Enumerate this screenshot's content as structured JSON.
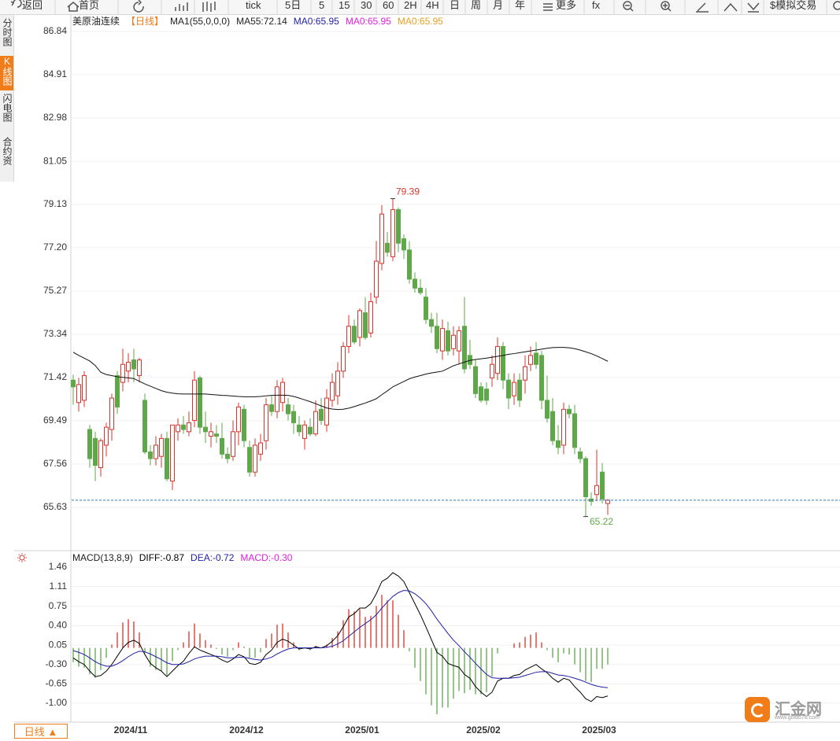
{
  "toolbar": [
    "返回",
    "首页",
    "tick",
    "5日",
    "5",
    "15",
    "30",
    "60",
    "2H",
    "4H",
    "日",
    "周",
    "月",
    "年",
    "更多",
    "fx",
    "$模拟交易"
  ],
  "sidebar": [
    "分时图",
    "K线图",
    "闪电图",
    "合约资料"
  ],
  "period_button": "日线 ▲",
  "logo": {
    "name": "汇金网",
    "url": "www.gold678.com"
  },
  "chart_data": [
    {
      "type": "candlestick",
      "title": "美原油连续",
      "period": "【日线】",
      "indicator": "MA1(55,0,0,0)",
      "legends": [
        {
          "text": "MA0:65.95",
          "color": "#1f1fa8"
        },
        {
          "text": "MA0:65.95",
          "color": "#e020e0"
        },
        {
          "text": "MA0:65.95",
          "color": "#e6a020"
        }
      ],
      "up_color": "#d9342b",
      "down_color": "#5fa84a",
      "last_price_color": "#2a7fc8",
      "grid": true,
      "ylim": [
        63.7,
        87.54
      ],
      "yticks": [
        86.84,
        84.91,
        82.98,
        81.05,
        79.13,
        {
          "value": 77.2,
          "label": "77.20"
        },
        75.27,
        73.34,
        71.42,
        69.49,
        67.56,
        65.63
      ],
      "categories": [
        null,
        null,
        null,
        null,
        null,
        null,
        null,
        null,
        null,
        null,
        "2024/11",
        null,
        null,
        null,
        null,
        null,
        null,
        null,
        null,
        null,
        null,
        null,
        null,
        null,
        null,
        null,
        null,
        null,
        null,
        null,
        null,
        "2024/12",
        null,
        null,
        null,
        null,
        null,
        null,
        null,
        null,
        null,
        null,
        null,
        null,
        null,
        null,
        null,
        null,
        null,
        null,
        null,
        null,
        "2025/01",
        null,
        null,
        null,
        null,
        null,
        null,
        null,
        null,
        null,
        null,
        null,
        null,
        null,
        null,
        null,
        null,
        null,
        null,
        null,
        null,
        null,
        "2025/02",
        null,
        null,
        null,
        null,
        null,
        null,
        null,
        null,
        null,
        null,
        null,
        null,
        null,
        null,
        null,
        null,
        null,
        null,
        null,
        null,
        "2025/03",
        null,
        null
      ],
      "open": [
        71.3,
        70.3,
        70.4,
        69.1,
        68.7,
        67.4,
        68.4,
        69.1,
        71.5,
        71.2,
        71.7,
        72.2,
        71.5,
        70.4,
        68.1,
        67.8,
        67.9,
        68.7,
        66.8,
        69.0,
        69.3,
        69.0,
        69.5,
        71.4,
        69.2,
        68.8,
        68.9,
        68.7,
        68.0,
        67.9,
        69.0,
        70.0,
        68.3,
        67.2,
        68.0,
        68.6,
        70.2,
        69.9,
        70.3,
        70.2,
        69.9,
        69.3,
        68.7,
        69.2,
        68.9,
        70.0,
        69.3,
        70.4,
        70.6,
        71.7,
        72.8,
        73.7,
        73.2,
        74.3,
        73.4,
        75.0,
        76.5,
        77.4,
        76.8,
        78.9,
        77.6,
        77.1,
        75.8,
        75.4,
        75.0,
        74.0,
        73.7,
        72.6,
        73.5,
        72.7,
        72.6,
        73.7,
        72.4,
        71.9,
        71.0,
        70.9,
        71.4,
        71.6,
        72.8,
        71.3,
        70.6,
        71.3,
        71.3,
        72.0,
        72.5,
        72.4,
        70.4,
        69.9,
        68.6,
        68.4,
        70.0,
        69.8,
        68.1,
        67.8,
        66.0,
        66.2,
        67.2,
        65.8
      ],
      "high": [
        71.55,
        71.4,
        71.7,
        69.3,
        69.0,
        68.7,
        69.4,
        70.7,
        71.7,
        72.7,
        72.5,
        72.7,
        72.3,
        70.7,
        68.4,
        68.8,
        68.9,
        69.0,
        69.3,
        69.6,
        69.7,
        69.9,
        71.7,
        71.5,
        69.9,
        69.4,
        69.3,
        69.4,
        68.3,
        69.5,
        70.3,
        70.2,
        68.6,
        68.7,
        68.9,
        70.5,
        70.6,
        71.3,
        71.4,
        70.5,
        70.2,
        69.7,
        69.5,
        69.6,
        70.4,
        70.5,
        70.9,
        71.6,
        72.1,
        73.0,
        74.2,
        74.0,
        74.5,
        75.0,
        75.2,
        77.5,
        79.1,
        77.9,
        79.39,
        79.0,
        77.8,
        77.5,
        76.1,
        75.8,
        75.4,
        74.3,
        74.3,
        74.0,
        73.9,
        73.7,
        73.7,
        75.0,
        73.1,
        72.2,
        71.2,
        71.2,
        72.4,
        73.2,
        73.0,
        71.6,
        71.6,
        71.6,
        72.4,
        72.8,
        73.0,
        72.6,
        71.5,
        70.5,
        69.3,
        70.3,
        70.2,
        70.2,
        68.3,
        67.9,
        66.3,
        68.2,
        67.6,
        66.0
      ],
      "low": [
        70.2,
        69.9,
        70.1,
        67.4,
        66.8,
        67.0,
        67.9,
        68.6,
        69.8,
        70.8,
        71.2,
        71.2,
        71.2,
        68.0,
        67.5,
        67.5,
        67.4,
        66.8,
        66.4,
        68.6,
        68.9,
        68.8,
        69.2,
        68.9,
        68.5,
        68.3,
        68.5,
        67.8,
        67.6,
        67.7,
        68.4,
        68.3,
        67.0,
        67.0,
        67.7,
        68.2,
        69.7,
        69.6,
        69.9,
        69.5,
        68.9,
        68.8,
        68.2,
        68.8,
        68.8,
        69.3,
        69.0,
        70.1,
        70.2,
        71.4,
        72.5,
        72.9,
        72.8,
        73.1,
        73.2,
        74.7,
        76.2,
        76.8,
        76.6,
        77.0,
        76.7,
        75.6,
        75.2,
        75.1,
        73.8,
        73.4,
        72.5,
        72.2,
        72.4,
        72.4,
        72.0,
        71.6,
        71.8,
        70.5,
        70.3,
        70.2,
        71.0,
        71.3,
        70.9,
        70.0,
        70.2,
        70.1,
        70.7,
        71.7,
        71.8,
        70.0,
        69.4,
        68.4,
        68.0,
        68.0,
        69.6,
        68.0,
        67.6,
        65.22,
        65.7,
        65.9,
        65.8,
        65.3
      ],
      "close": [
        71.0,
        71.1,
        71.5,
        67.8,
        67.5,
        68.6,
        69.2,
        70.5,
        70.1,
        72.0,
        72.1,
        71.8,
        72.2,
        68.1,
        67.8,
        68.4,
        68.7,
        66.9,
        69.3,
        69.3,
        69.1,
        69.4,
        71.3,
        69.2,
        69.0,
        69.0,
        68.8,
        68.0,
        67.8,
        69.0,
        70.1,
        68.6,
        67.2,
        68.4,
        68.5,
        70.2,
        69.9,
        71.0,
        71.2,
        69.8,
        69.4,
        69.0,
        69.3,
        68.9,
        69.9,
        69.5,
        70.5,
        71.2,
        71.7,
        72.8,
        73.7,
        73.0,
        74.4,
        73.2,
        74.8,
        76.6,
        78.7,
        77.0,
        78.9,
        77.4,
        77.1,
        75.8,
        75.4,
        75.2,
        74.0,
        73.7,
        72.7,
        73.6,
        72.6,
        73.3,
        73.5,
        71.8,
        72.0,
        70.7,
        70.4,
        70.4,
        72.0,
        72.8,
        71.3,
        70.5,
        71.2,
        70.4,
        71.9,
        72.4,
        72.0,
        70.4,
        69.6,
        68.6,
        68.3,
        70.0,
        69.8,
        68.3,
        67.8,
        66.1,
        65.9,
        66.6,
        66.0,
        65.95
      ],
      "ma": {
        "legend": "MA55:72.14",
        "color": "#111111",
        "values": [
          72.54,
          72.4,
          72.28,
          72.15,
          71.95,
          71.65,
          71.55,
          71.5,
          71.45,
          71.42,
          71.4,
          71.37,
          71.25,
          71.13,
          71.03,
          70.93,
          70.83,
          70.76,
          70.72,
          70.69,
          70.68,
          70.68,
          70.68,
          70.68,
          70.68,
          70.66,
          70.64,
          70.62,
          70.61,
          70.59,
          70.57,
          70.56,
          70.56,
          70.56,
          70.57,
          70.6,
          70.62,
          70.63,
          70.63,
          70.62,
          70.57,
          70.5,
          70.42,
          70.34,
          70.25,
          70.15,
          70.06,
          70.01,
          69.99,
          70.0,
          70.05,
          70.12,
          70.2,
          70.28,
          70.37,
          70.47,
          70.65,
          70.82,
          71.0,
          71.12,
          71.24,
          71.36,
          71.44,
          71.5,
          71.57,
          71.62,
          71.66,
          71.7,
          71.82,
          71.94,
          72.02,
          72.1,
          72.18,
          72.22,
          72.25,
          72.28,
          72.32,
          72.36,
          72.4,
          72.45,
          72.48,
          72.52,
          72.56,
          72.6,
          72.64,
          72.68,
          72.72,
          72.75,
          72.76,
          72.76,
          72.74,
          72.7,
          72.64,
          72.56,
          72.48,
          72.38,
          72.26,
          72.14
        ]
      }
    },
    {
      "type": "macd",
      "title": "MACD(13,8,9)",
      "grid": true,
      "ylim": [
        -1.3,
        1.56
      ],
      "yticks": [
        1.46,
        1.11,
        0.75,
        {
          "value": 0.4,
          "label": "0.40"
        },
        0.05,
        {
          "value": -0.3,
          "label": "-0.30"
        },
        -0.65,
        {
          "value": -1,
          "label": "-1.00"
        }
      ],
      "series": [
        {
          "legend": "DIFF:-0.87",
          "color": "#000000",
          "values": [
            -0.18,
            -0.25,
            -0.3,
            -0.42,
            -0.52,
            -0.5,
            -0.42,
            -0.3,
            -0.15,
            0.0,
            0.1,
            0.14,
            0.08,
            -0.12,
            -0.28,
            -0.36,
            -0.42,
            -0.52,
            -0.42,
            -0.32,
            -0.24,
            -0.1,
            0.02,
            -0.04,
            -0.08,
            -0.12,
            -0.16,
            -0.22,
            -0.26,
            -0.2,
            -0.12,
            -0.16,
            -0.28,
            -0.3,
            -0.26,
            -0.12,
            -0.04,
            0.1,
            0.16,
            0.12,
            0.05,
            -0.02,
            0.0,
            -0.02,
            0.02,
            0.0,
            0.04,
            0.12,
            0.22,
            0.38,
            0.56,
            0.62,
            0.72,
            0.72,
            0.8,
            0.98,
            1.2,
            1.26,
            1.36,
            1.3,
            1.2,
            1.0,
            0.8,
            0.6,
            0.38,
            0.15,
            -0.08,
            -0.15,
            -0.28,
            -0.32,
            -0.35,
            -0.48,
            -0.55,
            -0.7,
            -0.8,
            -0.88,
            -0.8,
            -0.6,
            -0.55,
            -0.55,
            -0.5,
            -0.48,
            -0.4,
            -0.35,
            -0.3,
            -0.38,
            -0.45,
            -0.55,
            -0.62,
            -0.55,
            -0.58,
            -0.7,
            -0.8,
            -0.92,
            -0.97,
            -0.88,
            -0.9,
            -0.87
          ]
        },
        {
          "legend": "DEA:-0.72",
          "color": "#1f1fa8",
          "values": [
            -0.05,
            -0.08,
            -0.12,
            -0.18,
            -0.25,
            -0.3,
            -0.33,
            -0.33,
            -0.29,
            -0.23,
            -0.16,
            -0.1,
            -0.06,
            -0.07,
            -0.11,
            -0.16,
            -0.21,
            -0.27,
            -0.3,
            -0.3,
            -0.29,
            -0.25,
            -0.2,
            -0.17,
            -0.15,
            -0.15,
            -0.15,
            -0.16,
            -0.18,
            -0.18,
            -0.17,
            -0.17,
            -0.19,
            -0.21,
            -0.22,
            -0.2,
            -0.17,
            -0.11,
            -0.06,
            -0.02,
            0.0,
            0.0,
            0.0,
            0.0,
            0.0,
            0.0,
            0.01,
            0.03,
            0.07,
            0.13,
            0.21,
            0.29,
            0.37,
            0.44,
            0.51,
            0.6,
            0.72,
            0.83,
            0.93,
            1.0,
            1.04,
            1.03,
            0.98,
            0.9,
            0.8,
            0.67,
            0.52,
            0.39,
            0.26,
            0.14,
            0.04,
            -0.07,
            -0.17,
            -0.28,
            -0.38,
            -0.48,
            -0.54,
            -0.55,
            -0.55,
            -0.55,
            -0.54,
            -0.53,
            -0.5,
            -0.47,
            -0.44,
            -0.43,
            -0.43,
            -0.46,
            -0.49,
            -0.5,
            -0.52,
            -0.55,
            -0.58,
            -0.62,
            -0.66,
            -0.69,
            -0.71,
            -0.72
          ]
        }
      ],
      "histogram": {
        "legend": "MACD:-0.30",
        "legend_color": "#e020e0",
        "up_color": "#d9342b",
        "down_color": "#5fa84a",
        "values": [
          -0.26,
          -0.34,
          -0.36,
          -0.48,
          -0.54,
          -0.4,
          -0.18,
          0.06,
          0.28,
          0.46,
          0.52,
          0.48,
          0.28,
          -0.1,
          -0.34,
          -0.4,
          -0.42,
          -0.5,
          -0.24,
          -0.04,
          0.1,
          0.3,
          0.44,
          0.26,
          0.14,
          0.06,
          -0.02,
          -0.12,
          -0.16,
          -0.04,
          0.1,
          0.02,
          -0.18,
          -0.18,
          -0.08,
          0.16,
          0.26,
          0.42,
          0.44,
          0.28,
          0.1,
          -0.04,
          0.0,
          -0.04,
          0.04,
          0.0,
          0.06,
          0.18,
          0.3,
          0.5,
          0.7,
          0.66,
          0.7,
          0.56,
          0.58,
          0.76,
          0.96,
          0.86,
          0.86,
          0.6,
          0.32,
          -0.06,
          -0.36,
          -0.6,
          -0.84,
          -1.04,
          -1.2,
          -1.08,
          -1.08,
          -0.92,
          -0.78,
          -0.82,
          -0.76,
          -0.84,
          -0.84,
          -0.8,
          -0.52,
          -0.1,
          0.0,
          0.0,
          0.08,
          0.1,
          0.2,
          0.24,
          0.28,
          0.1,
          -0.04,
          -0.18,
          -0.26,
          -0.1,
          -0.12,
          -0.3,
          -0.44,
          -0.6,
          -0.62,
          -0.38,
          -0.38,
          -0.3
        ]
      }
    }
  ]
}
